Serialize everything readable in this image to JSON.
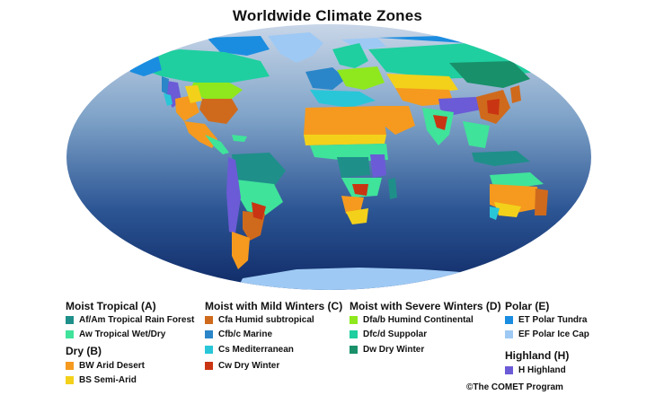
{
  "title": "Worldwide Climate Zones",
  "credit": "©The COMET Program",
  "colors": {
    "af_am": "#1f8f8a",
    "aw": "#3fe39a",
    "bw": "#f59a1e",
    "bs": "#f3d11a",
    "cfa": "#cf6a1d",
    "cfb": "#2a86c8",
    "cs": "#29c6d8",
    "cw": "#c93512",
    "dfa": "#8ee81d",
    "dfc": "#1fcf9f",
    "dw": "#18906a",
    "et": "#1b8de0",
    "ef": "#9ec9f4",
    "h": "#6b5bd6",
    "ocean_top": "#c9d6e8",
    "ocean_bottom": "#0f2a66"
  },
  "legend": {
    "moist_tropical": {
      "heading": "Moist Tropical (A)",
      "items": [
        "Af/Am Tropical Rain Forest",
        "Aw Tropical Wet/Dry"
      ]
    },
    "dry": {
      "heading": "Dry (B)",
      "items": [
        "BW Arid Desert",
        "BS Semi-Arid"
      ]
    },
    "mild_winters": {
      "heading": "Moist with Mild Winters (C)",
      "items": [
        "Cfa Humid subtropical",
        "Cfb/c Marine",
        "Cs Mediterranean",
        "Cw Dry Winter"
      ]
    },
    "severe_winters": {
      "heading": "Moist with Severe Winters (D)",
      "items": [
        "Dfa/b Humind Continental",
        "Dfc/d Suppolar",
        "Dw Dry Winter"
      ]
    },
    "polar": {
      "heading": "Polar (E)",
      "items": [
        "ET Polar Tundra",
        "EF Polar Ice Cap"
      ]
    },
    "highland": {
      "heading": "Highland (H)",
      "items": [
        "H Highland"
      ]
    }
  }
}
